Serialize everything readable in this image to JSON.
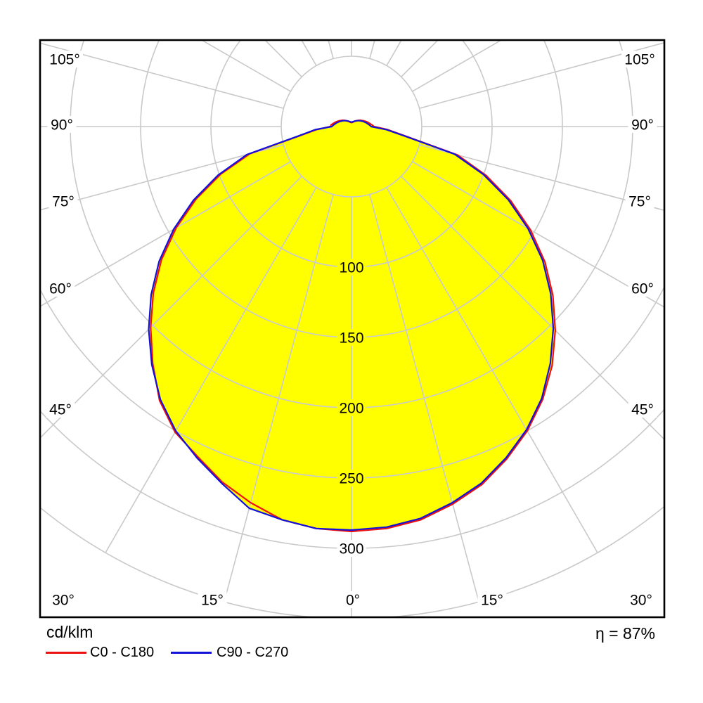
{
  "legend": {
    "unit": "cd/klm",
    "entries": [
      {
        "label": "C0 - C180"
      },
      {
        "label": "C90 - C270"
      }
    ]
  },
  "efficiency": {
    "text": "η = 87%"
  },
  "chart_data": {
    "type": "polar-photometric-distribution",
    "title": "",
    "unit": "cd/klm",
    "efficiency_percent": 87,
    "gamma_step_deg": 5,
    "gamma_range_deg": [
      0,
      90
    ],
    "angle_labels": [
      "0°",
      "15°",
      "30°",
      "45°",
      "60°",
      "75°",
      "90°",
      "105°"
    ],
    "angle_grid_step_deg": 15,
    "radial_tick_labels": [
      100,
      150,
      200,
      250,
      300
    ],
    "radial_rings": [
      50,
      100,
      150,
      200,
      250,
      300,
      350
    ],
    "r_axis_max": 350,
    "fill_color": "#ffff00",
    "grid_color": "#c9c9c9",
    "grid_color_inside": "#c6c8da",
    "series": [
      {
        "name": "C0 - C180",
        "color": "#ee1111",
        "right_values": [
          288,
          287,
          284,
          278,
          271,
          261,
          250,
          237,
          222,
          205,
          187,
          168,
          147,
          125,
          102,
          78,
          39,
          26,
          16
        ],
        "left_values": [
          288,
          287,
          284,
          277,
          269,
          259,
          251,
          238,
          220,
          202,
          184,
          165,
          144,
          122,
          99,
          75,
          37,
          25,
          15
        ],
        "uplight": {
          "top": 2.8,
          "at_90": 16
        }
      },
      {
        "name": "C90 - C270",
        "color": "#1212d9",
        "right_values": [
          287,
          286,
          283,
          277,
          270,
          260,
          249,
          236,
          220,
          203,
          185,
          166,
          145,
          123,
          100,
          76,
          38,
          25,
          14
        ],
        "left_values": [
          287,
          287,
          284,
          281,
          270,
          260,
          250,
          237,
          221,
          204,
          186,
          167,
          146,
          124,
          101,
          77,
          38,
          26,
          14
        ],
        "uplight": {
          "top": 3.2,
          "at_90": 14
        }
      }
    ]
  }
}
